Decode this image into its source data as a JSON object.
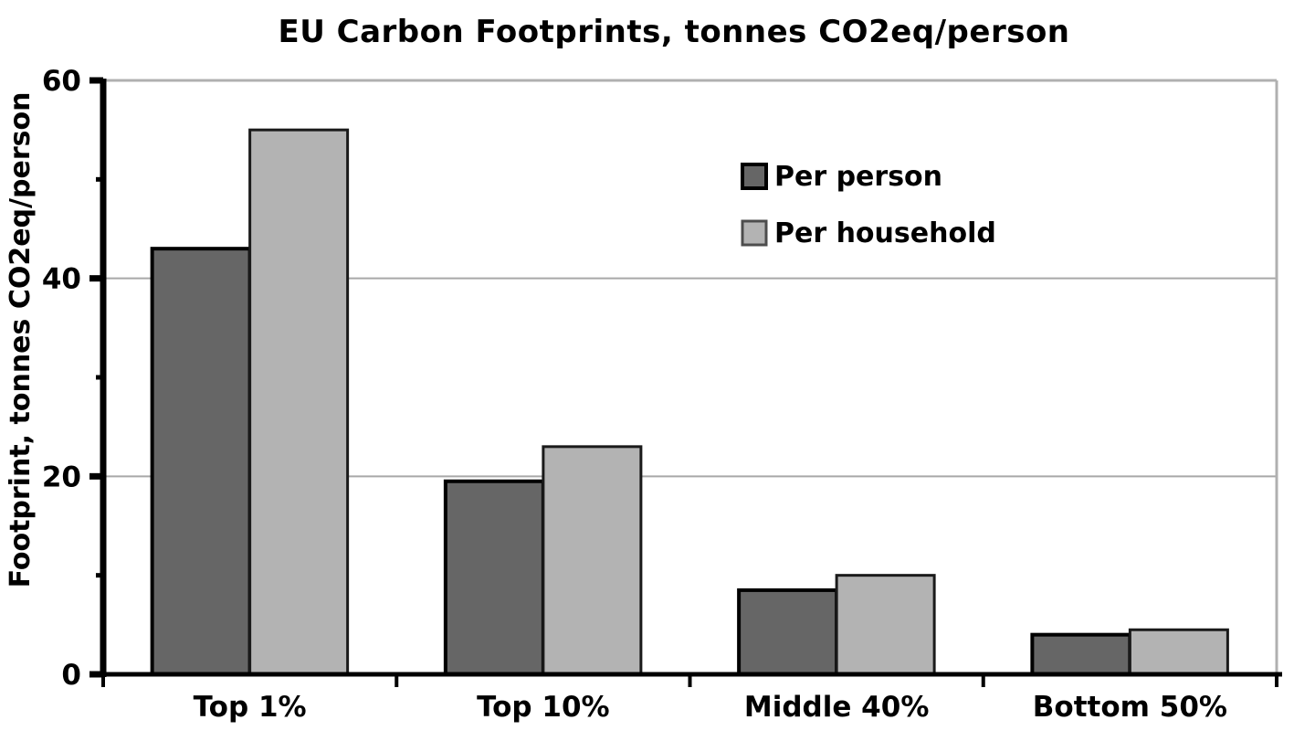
{
  "chart_data": {
    "type": "bar",
    "title": "EU Carbon Footprints, tonnes CO2eq/person",
    "ylabel": "Footprint, tonnes CO2eq/person",
    "xlabel": "",
    "categories": [
      "Top 1%",
      "Top 10%",
      "Middle 40%",
      "Bottom 50%"
    ],
    "series": [
      {
        "name": "Per person",
        "color": "#666666",
        "border_color": "#000000",
        "values": [
          43,
          19.5,
          8.5,
          4
        ]
      },
      {
        "name": "Per household",
        "color": "#b3b3b3",
        "border_color": "#1a1a1a",
        "values": [
          55,
          23,
          10,
          4.5
        ]
      }
    ],
    "ylim": [
      0,
      60
    ],
    "yticks_major": [
      0,
      20,
      40,
      60
    ],
    "yticks_minor": [
      10,
      30,
      50
    ],
    "gridlines": [
      20,
      40,
      60
    ],
    "grid": true,
    "legend_position": "upper center-right inside plot",
    "background_color": "#ffffff",
    "gridline_color": "#a8a8a8",
    "frame_color": "#b0b0b0",
    "axis_color": "#000000",
    "text_color": "#000000"
  }
}
